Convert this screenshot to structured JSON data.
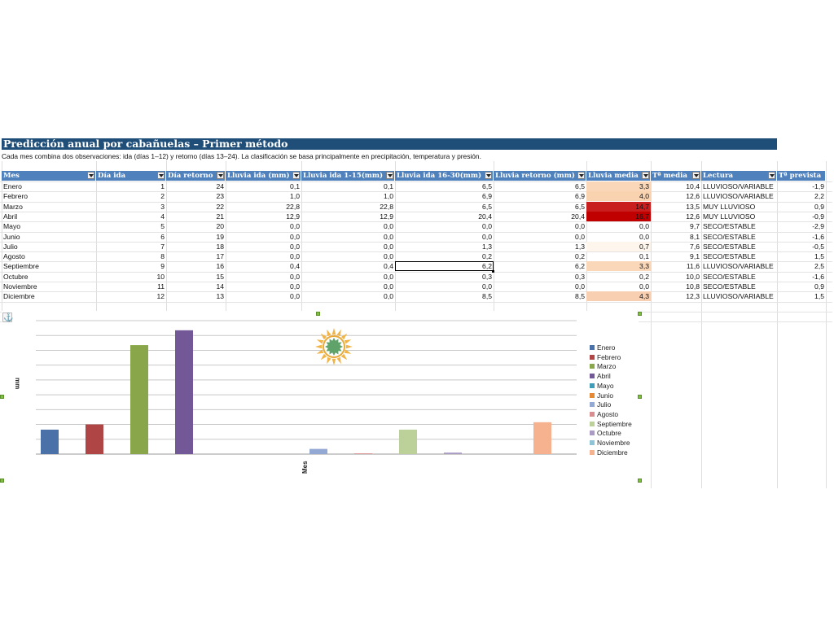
{
  "sheet": {
    "title": "Predicción anual por cabañuelas – Primer método",
    "description": "Cada mes combina dos observaciones: ida (días 1–12) y retorno (días 13–24). La clasificación se basa principalmente en precipitación, temperatura y presión."
  },
  "table": {
    "columns": [
      "Mes",
      "Día ida",
      "Día retorno",
      "Lluvia ida (mm)",
      "Lluvia ida 1-15(mm)",
      "Lluvia ida 16-30(mm)",
      "Lluvia retorno (mm)",
      "Lluvia media",
      "Tª media",
      "Lectura",
      "Tª prevista"
    ],
    "rows": [
      [
        "Enero",
        "1",
        "24",
        "0,1",
        "0,1",
        "6,5",
        "6,5",
        "3,3",
        "10,4",
        "LLUVIOSO/VARIABLE",
        "-1,9"
      ],
      [
        "Febrero",
        "2",
        "23",
        "1,0",
        "1,0",
        "6,9",
        "6,9",
        "4,0",
        "12,6",
        "LLUVIOSO/VARIABLE",
        "2,2"
      ],
      [
        "Marzo",
        "3",
        "22",
        "22,8",
        "22,8",
        "6,5",
        "6,5",
        "14,7",
        "13,5",
        "MUY LLUVIOSO",
        "0,9"
      ],
      [
        "Abril",
        "4",
        "21",
        "12,9",
        "12,9",
        "20,4",
        "20,4",
        "16,7",
        "12,6",
        "MUY LLUVIOSO",
        "-0,9"
      ],
      [
        "Mayo",
        "5",
        "20",
        "0,0",
        "0,0",
        "0,0",
        "0,0",
        "0,0",
        "9,7",
        "SECO/ESTABLE",
        "-2,9"
      ],
      [
        "Junio",
        "6",
        "19",
        "0,0",
        "0,0",
        "0,0",
        "0,0",
        "0,0",
        "8,1",
        "SECO/ESTABLE",
        "-1,6"
      ],
      [
        "Julio",
        "7",
        "18",
        "0,0",
        "0,0",
        "1,3",
        "1,3",
        "0,7",
        "7,6",
        "SECO/ESTABLE",
        "-0,5"
      ],
      [
        "Agosto",
        "8",
        "17",
        "0,0",
        "0,0",
        "0,2",
        "0,2",
        "0,1",
        "9,1",
        "SECO/ESTABLE",
        "1,5"
      ],
      [
        "Septiembre",
        "9",
        "16",
        "0,4",
        "0,4",
        "6,2",
        "6,2",
        "3,3",
        "11,6",
        "LLUVIOSO/VARIABLE",
        "2,5"
      ],
      [
        "Octubre",
        "10",
        "15",
        "0,0",
        "0,0",
        "0,3",
        "0,3",
        "0,2",
        "10,0",
        "SECO/ESTABLE",
        "-1,6"
      ],
      [
        "Noviembre",
        "11",
        "14",
        "0,0",
        "0,0",
        "0,0",
        "0,0",
        "0,0",
        "10,8",
        "SECO/ESTABLE",
        "0,9"
      ],
      [
        "Diciembre",
        "12",
        "13",
        "0,0",
        "0,0",
        "8,5",
        "8,5",
        "4,3",
        "12,3",
        "LLUVIOSO/VARIABLE",
        "1,5"
      ]
    ],
    "lluvia_media_fills": [
      "#fad7b8",
      "#f9d2b0",
      "#c81e1e",
      "#c00000",
      "",
      "",
      "#fef6ec",
      "",
      "#fad7b8",
      "",
      "",
      "#f8cfb0"
    ]
  },
  "colors": {
    "title_bg": "#1f4e79",
    "header_bg": "#4f81bd"
  },
  "icons": {
    "anchor": "⚓"
  },
  "chart_data": {
    "type": "bar",
    "xlabel": "Mes",
    "ylabel": "mm",
    "ylim": [
      0,
      18
    ],
    "grid": true,
    "legend_position": "right",
    "series": [
      {
        "name": "Enero",
        "value": 3.3,
        "color": "#4a72a8"
      },
      {
        "name": "Febrero",
        "value": 4.0,
        "color": "#b04545"
      },
      {
        "name": "Marzo",
        "value": 14.7,
        "color": "#8aa64a"
      },
      {
        "name": "Abril",
        "value": 16.7,
        "color": "#735898"
      },
      {
        "name": "Mayo",
        "value": 0.0,
        "color": "#3f9bb8"
      },
      {
        "name": "Junio",
        "value": 0.0,
        "color": "#e48a35"
      },
      {
        "name": "Julio",
        "value": 0.7,
        "color": "#93a9d4"
      },
      {
        "name": "Agosto",
        "value": 0.1,
        "color": "#d88e8e"
      },
      {
        "name": "Septiembre",
        "value": 3.3,
        "color": "#bcd19a"
      },
      {
        "name": "Octubre",
        "value": 0.2,
        "color": "#a99bc4"
      },
      {
        "name": "Noviembre",
        "value": 0.0,
        "color": "#8fc4d6"
      },
      {
        "name": "Diciembre",
        "value": 4.3,
        "color": "#f6b28f"
      }
    ]
  }
}
